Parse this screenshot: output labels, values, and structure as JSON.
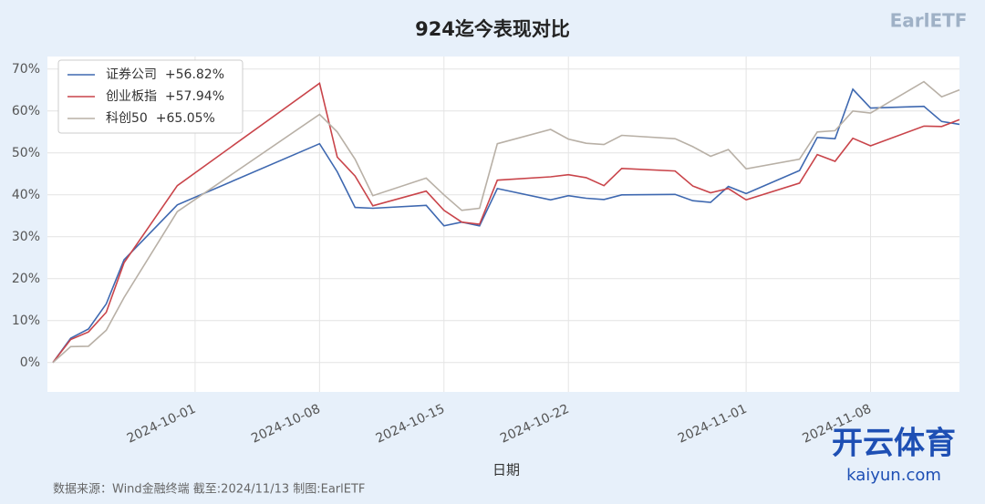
{
  "chart_data": {
    "type": "line",
    "title": "924迄今表现对比",
    "x_label": "日期",
    "source": "数据来源：Wind金融终端 截至:2024/11/13 制图:EarlETF",
    "brand": "EarlETF",
    "watermark": "开云体育",
    "watermark_url": "kaiyun.com",
    "x": [
      "2024-09-23",
      "2024-09-24",
      "2024-09-25",
      "2024-09-26",
      "2024-09-27",
      "2024-09-30",
      "2024-10-08",
      "2024-10-09",
      "2024-10-10",
      "2024-10-11",
      "2024-10-14",
      "2024-10-15",
      "2024-10-16",
      "2024-10-17",
      "2024-10-18",
      "2024-10-21",
      "2024-10-22",
      "2024-10-23",
      "2024-10-24",
      "2024-10-25",
      "2024-10-28",
      "2024-10-29",
      "2024-10-30",
      "2024-10-31",
      "2024-11-01",
      "2024-11-04",
      "2024-11-05",
      "2024-11-06",
      "2024-11-07",
      "2024-11-08",
      "2024-11-11",
      "2024-11-12",
      "2024-11-13"
    ],
    "xlim": [
      "2024-09-23",
      "2024-11-13"
    ],
    "xticks": [
      "2024-10-01",
      "2024-10-08",
      "2024-10-15",
      "2024-10-22",
      "2024-11-01",
      "2024-11-08"
    ],
    "ylim": [
      -7,
      73
    ],
    "yticks": [
      {
        "value": 0,
        "label": "0%"
      },
      {
        "value": 10,
        "label": "10%"
      },
      {
        "value": 20,
        "label": "20%"
      },
      {
        "value": 30,
        "label": "30%"
      },
      {
        "value": 40,
        "label": "40%"
      },
      {
        "value": 50,
        "label": "50%"
      },
      {
        "value": 60,
        "label": "60%"
      },
      {
        "value": 70,
        "label": "70%"
      }
    ],
    "grid": true,
    "legend": "upper left",
    "series": [
      {
        "name": "证券公司  +56.82%",
        "color": "#3e68b0",
        "values": [
          0,
          5.8,
          8,
          14,
          24.5,
          37.6,
          52.2,
          45.5,
          37,
          36.8,
          37.5,
          32.6,
          33.5,
          32.6,
          41.5,
          38.8,
          39.8,
          39.2,
          38.9,
          40,
          40.1,
          38.6,
          38.2,
          42,
          40.3,
          45.8,
          53.7,
          53.4,
          65.2,
          60.7,
          61.1,
          57.5,
          56.82
        ]
      },
      {
        "name": "创业板指  +57.94%",
        "color": "#c9444a",
        "values": [
          0,
          5.5,
          7.3,
          12,
          23.8,
          42.2,
          66.6,
          49,
          44.5,
          37.4,
          40.9,
          36.3,
          33.5,
          33,
          43.5,
          44.3,
          44.8,
          44.1,
          42.2,
          46.3,
          45.7,
          42.1,
          40.5,
          41.5,
          38.8,
          42.8,
          49.6,
          48,
          53.5,
          51.7,
          56.4,
          56.3,
          57.94
        ]
      },
      {
        "name": "科创50  +65.05%",
        "color": "#b8b0a6",
        "values": [
          0,
          3.8,
          3.9,
          7.7,
          15.5,
          36,
          59.2,
          55,
          48.5,
          39.8,
          44,
          40,
          36.3,
          36.8,
          52.2,
          55.6,
          53.3,
          52.3,
          52,
          54.2,
          53.4,
          51.5,
          49.2,
          50.8,
          46.2,
          48.5,
          55,
          55.3,
          60,
          59.5,
          67,
          63.4,
          65.05
        ]
      }
    ]
  }
}
